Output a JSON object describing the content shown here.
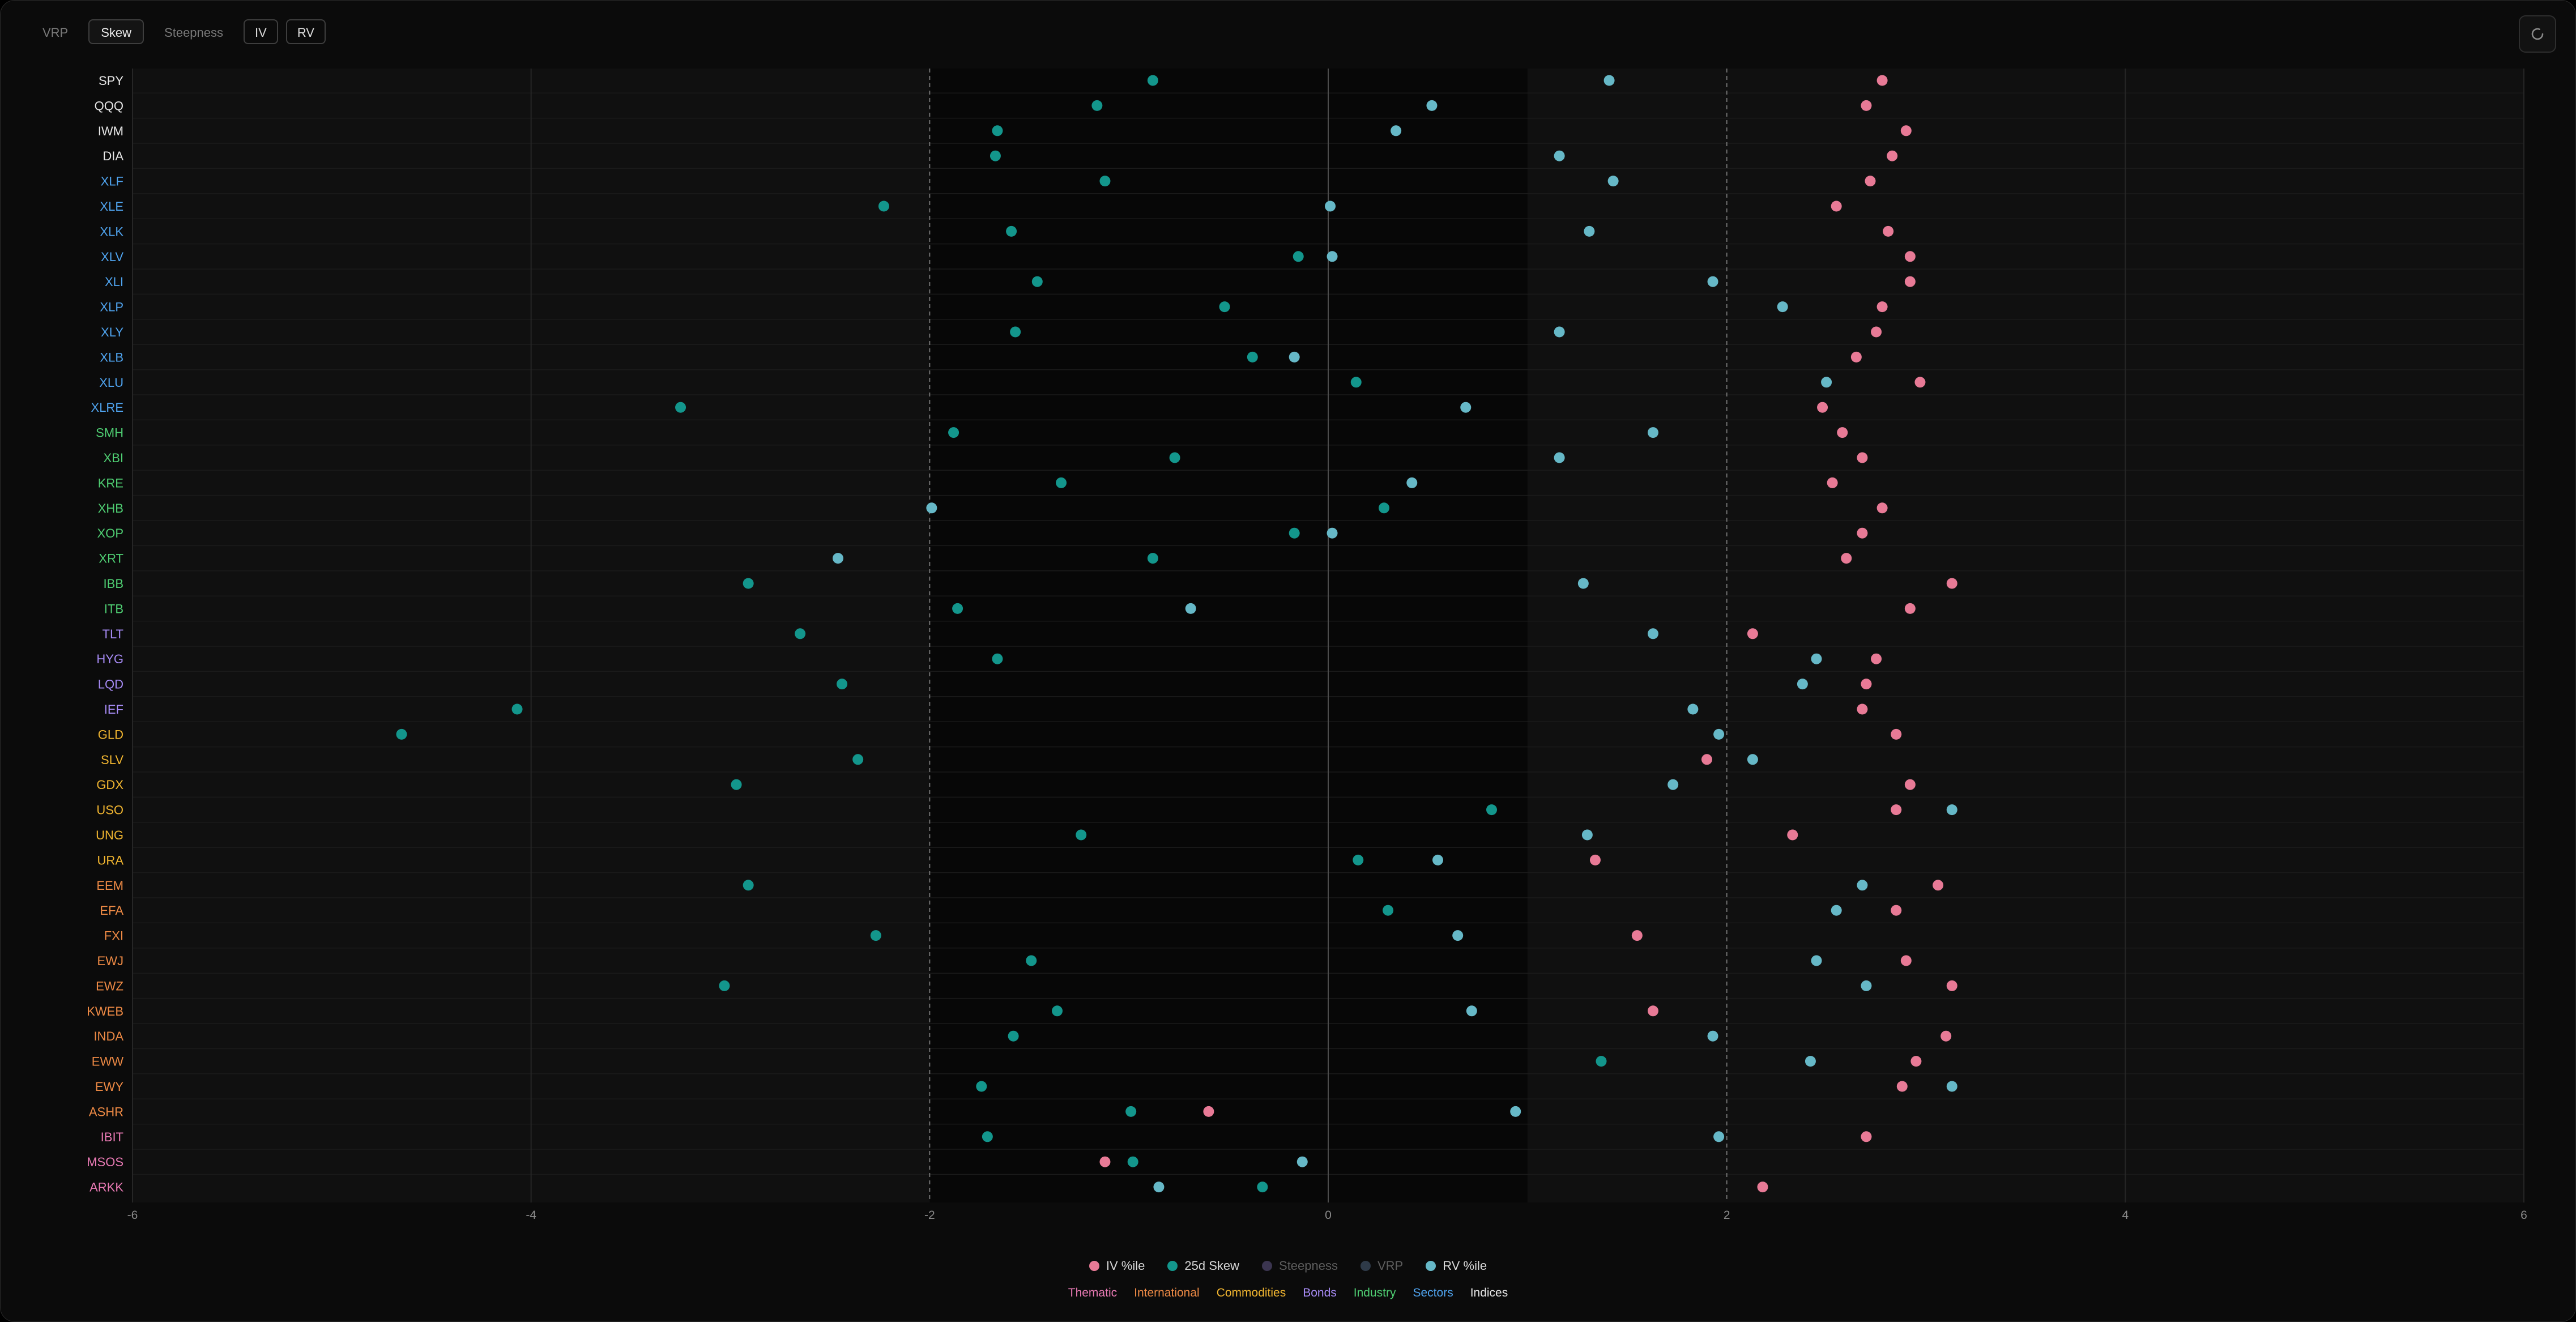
{
  "toolbar": {
    "vrp_label": "VRP",
    "skew_label": "Skew",
    "steepness_label": "Steepness",
    "iv_label": "IV",
    "rv_label": "RV",
    "active_tab": "Skew"
  },
  "legend": {
    "series": [
      {
        "label": "IV %ile",
        "color": "#e87a96",
        "enabled": true
      },
      {
        "label": "25d Skew",
        "color": "#13968c",
        "enabled": true
      },
      {
        "label": "Steepness",
        "color": "#3b3550",
        "enabled": false
      },
      {
        "label": "VRP",
        "color": "#2e3a48",
        "enabled": false
      },
      {
        "label": "RV %ile",
        "color": "#66b8c7",
        "enabled": true
      }
    ],
    "groups": [
      {
        "label": "Thematic",
        "color": "#e97ab4"
      },
      {
        "label": "International",
        "color": "#ee8a45"
      },
      {
        "label": "Commodities",
        "color": "#f2b630"
      },
      {
        "label": "Bonds",
        "color": "#a88cf7"
      },
      {
        "label": "Industry",
        "color": "#4fcf73"
      },
      {
        "label": "Sectors",
        "color": "#4fa3ee"
      },
      {
        "label": "Indices",
        "color": "#e6e6e6"
      }
    ]
  },
  "chart_data": {
    "type": "scatter",
    "orientation": "horizontal-dot-plot",
    "xlim": [
      -6,
      6
    ],
    "xticks": [
      -6,
      -4,
      -2,
      0,
      2,
      4,
      6
    ],
    "reference_lines": [
      -2,
      0,
      2
    ],
    "grid": true,
    "legend_position": "bottom-center",
    "rows": [
      {
        "ticker": "SPY",
        "group": "Indices",
        "iv": 2.78,
        "skew": -0.88,
        "rv": 1.41
      },
      {
        "ticker": "QQQ",
        "group": "Indices",
        "iv": 2.7,
        "skew": -1.16,
        "rv": 0.52
      },
      {
        "ticker": "IWM",
        "group": "Indices",
        "iv": 2.9,
        "skew": -1.66,
        "rv": 0.34
      },
      {
        "ticker": "DIA",
        "group": "Indices",
        "iv": 2.83,
        "skew": -1.67,
        "rv": 1.16
      },
      {
        "ticker": "XLF",
        "group": "Sectors",
        "iv": 2.72,
        "skew": -1.12,
        "rv": 1.43
      },
      {
        "ticker": "XLE",
        "group": "Sectors",
        "iv": 2.55,
        "skew": -2.23,
        "rv": 0.01
      },
      {
        "ticker": "XLK",
        "group": "Sectors",
        "iv": 2.81,
        "skew": -1.59,
        "rv": 1.31
      },
      {
        "ticker": "XLV",
        "group": "Sectors",
        "iv": 2.92,
        "skew": -0.15,
        "rv": 0.02
      },
      {
        "ticker": "XLI",
        "group": "Sectors",
        "iv": 2.92,
        "skew": -1.46,
        "rv": 1.93
      },
      {
        "ticker": "XLP",
        "group": "Sectors",
        "iv": 2.78,
        "skew": -0.52,
        "rv": 2.28
      },
      {
        "ticker": "XLY",
        "group": "Sectors",
        "iv": 2.75,
        "skew": -1.57,
        "rv": 1.16
      },
      {
        "ticker": "XLB",
        "group": "Sectors",
        "iv": 2.65,
        "skew": -0.38,
        "rv": -0.17
      },
      {
        "ticker": "XLU",
        "group": "Sectors",
        "iv": 2.97,
        "skew": 0.14,
        "rv": 2.5
      },
      {
        "ticker": "XLRE",
        "group": "Sectors",
        "iv": 2.48,
        "skew": -3.25,
        "rv": 0.69
      },
      {
        "ticker": "SMH",
        "group": "Industry",
        "iv": 2.58,
        "skew": -1.88,
        "rv": 1.63
      },
      {
        "ticker": "XBI",
        "group": "Industry",
        "iv": 2.68,
        "skew": -0.77,
        "rv": 1.16
      },
      {
        "ticker": "KRE",
        "group": "Industry",
        "iv": 2.53,
        "skew": -1.34,
        "rv": 0.42
      },
      {
        "ticker": "XHB",
        "group": "Industry",
        "iv": 2.78,
        "skew": 0.28,
        "rv": -1.99
      },
      {
        "ticker": "XOP",
        "group": "Industry",
        "iv": 2.68,
        "skew": -0.17,
        "rv": 0.02
      },
      {
        "ticker": "XRT",
        "group": "Industry",
        "iv": 2.6,
        "skew": -0.88,
        "rv": -2.46
      },
      {
        "ticker": "IBB",
        "group": "Industry",
        "iv": 3.13,
        "skew": -2.91,
        "rv": 1.28
      },
      {
        "ticker": "ITB",
        "group": "Industry",
        "iv": 2.92,
        "skew": -1.86,
        "rv": -0.69
      },
      {
        "ticker": "TLT",
        "group": "Bonds",
        "iv": 2.13,
        "skew": -2.65,
        "rv": 1.63
      },
      {
        "ticker": "HYG",
        "group": "Bonds",
        "iv": 2.75,
        "skew": -1.66,
        "rv": 2.45
      },
      {
        "ticker": "LQD",
        "group": "Bonds",
        "iv": 2.7,
        "skew": -2.44,
        "rv": 2.38
      },
      {
        "ticker": "IEF",
        "group": "Bonds",
        "iv": 2.68,
        "skew": -4.07,
        "rv": 1.83
      },
      {
        "ticker": "GLD",
        "group": "Commodities",
        "iv": 2.85,
        "skew": -4.65,
        "rv": 1.96
      },
      {
        "ticker": "SLV",
        "group": "Commodities",
        "iv": 1.9,
        "skew": -2.36,
        "rv": 2.13
      },
      {
        "ticker": "GDX",
        "group": "Commodities",
        "iv": 2.92,
        "skew": -2.97,
        "rv": 1.73
      },
      {
        "ticker": "USO",
        "group": "Commodities",
        "iv": 2.85,
        "skew": 0.82,
        "rv": 3.13
      },
      {
        "ticker": "UNG",
        "group": "Commodities",
        "iv": 2.33,
        "skew": -1.24,
        "rv": 1.3
      },
      {
        "ticker": "URA",
        "group": "Commodities",
        "iv": 1.34,
        "skew": 0.15,
        "rv": 0.55
      },
      {
        "ticker": "EEM",
        "group": "International",
        "iv": 3.06,
        "skew": -2.91,
        "rv": 2.68
      },
      {
        "ticker": "EFA",
        "group": "International",
        "iv": 2.85,
        "skew": 0.3,
        "rv": 2.55
      },
      {
        "ticker": "FXI",
        "group": "International",
        "iv": 1.55,
        "skew": -2.27,
        "rv": 0.65
      },
      {
        "ticker": "EWJ",
        "group": "International",
        "iv": 2.9,
        "skew": -1.49,
        "rv": 2.45
      },
      {
        "ticker": "EWZ",
        "group": "International",
        "iv": 3.13,
        "skew": -3.03,
        "rv": 2.7
      },
      {
        "ticker": "KWEB",
        "group": "International",
        "iv": 1.63,
        "skew": -1.36,
        "rv": 0.72
      },
      {
        "ticker": "INDA",
        "group": "International",
        "iv": 3.1,
        "skew": -1.58,
        "rv": 1.93
      },
      {
        "ticker": "EWW",
        "group": "International",
        "iv": 2.95,
        "skew": 1.37,
        "rv": 2.42
      },
      {
        "ticker": "EWY",
        "group": "International",
        "iv": 2.88,
        "skew": -1.74,
        "rv": 3.13
      },
      {
        "ticker": "ASHR",
        "group": "International",
        "iv": -0.6,
        "skew": -0.99,
        "rv": 0.94
      },
      {
        "ticker": "IBIT",
        "group": "Thematic",
        "iv": 2.7,
        "skew": -1.71,
        "rv": 1.96
      },
      {
        "ticker": "MSOS",
        "group": "Thematic",
        "iv": -1.12,
        "skew": -0.98,
        "rv": -0.13
      },
      {
        "ticker": "ARKK",
        "group": "Thematic",
        "iv": 2.18,
        "skew": -0.33,
        "rv": -0.85
      }
    ]
  }
}
